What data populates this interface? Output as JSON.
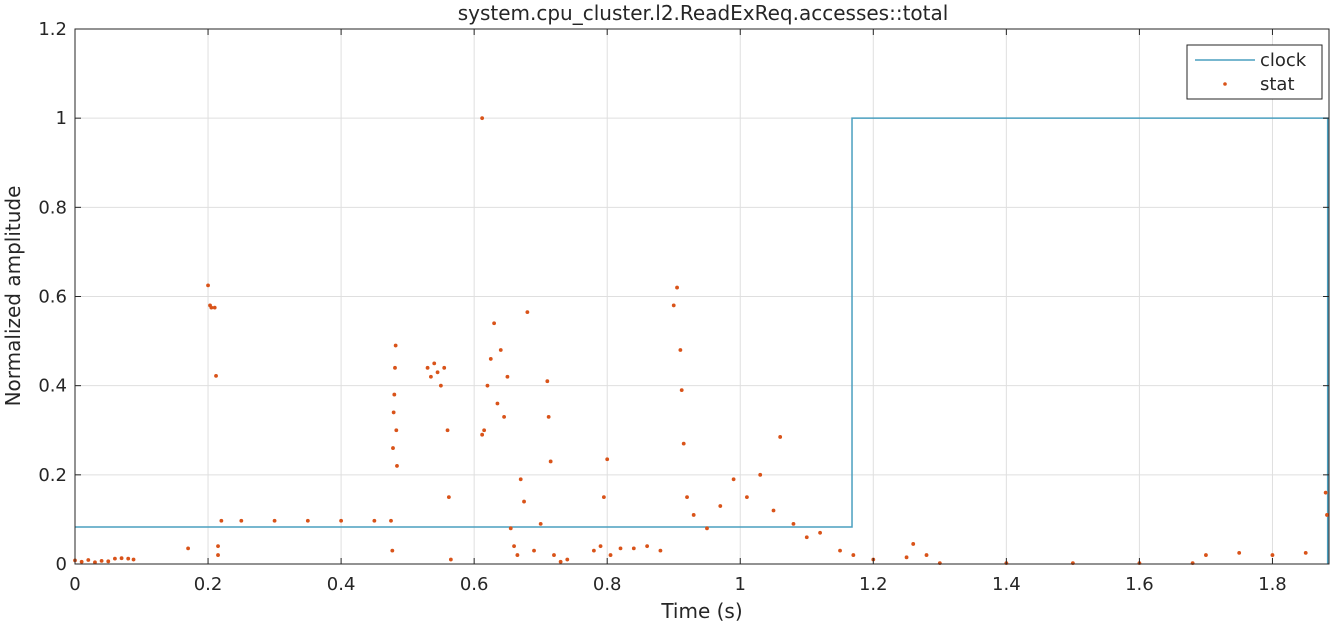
{
  "chart_data": {
    "type": "line",
    "title": "system.cpu_cluster.l2.ReadExReq.accesses::total",
    "xlabel": "Time (s)",
    "ylabel": "Normalized amplitude",
    "xlim": [
      0,
      1.885
    ],
    "ylim": [
      0,
      1.2
    ],
    "x_ticks": [
      0,
      0.2,
      0.4,
      0.6,
      0.8,
      1,
      1.2,
      1.4,
      1.6,
      1.8
    ],
    "x_tick_labels": [
      "0",
      "0.2",
      "0.4",
      "0.6",
      "0.8",
      "1",
      "1.2",
      "1.4",
      "1.6",
      "1.8"
    ],
    "y_ticks": [
      0,
      0.2,
      0.4,
      0.6,
      0.8,
      1,
      1.2
    ],
    "y_tick_labels": [
      "0",
      "0.2",
      "0.4",
      "0.6",
      "0.8",
      "1",
      "1.2"
    ],
    "grid": true,
    "legend_position": "top-right",
    "series": [
      {
        "name": "clock",
        "style": "step-line",
        "color": "#4a9fbf",
        "points": [
          [
            0,
            0.083
          ],
          [
            1.168,
            0.083
          ],
          [
            1.168,
            1.0
          ],
          [
            1.883,
            1.0
          ],
          [
            1.883,
            0.0
          ]
        ]
      },
      {
        "name": "stat",
        "style": "markers",
        "color": "#d95319",
        "points": [
          [
            0.0,
            0.008
          ],
          [
            0.01,
            0.005
          ],
          [
            0.02,
            0.009
          ],
          [
            0.03,
            0.004
          ],
          [
            0.04,
            0.007
          ],
          [
            0.05,
            0.006
          ],
          [
            0.06,
            0.012
          ],
          [
            0.07,
            0.013
          ],
          [
            0.08,
            0.012
          ],
          [
            0.088,
            0.01
          ],
          [
            0.17,
            0.035
          ],
          [
            0.2,
            0.625
          ],
          [
            0.203,
            0.58
          ],
          [
            0.205,
            0.575
          ],
          [
            0.21,
            0.575
          ],
          [
            0.212,
            0.422
          ],
          [
            0.215,
            0.04
          ],
          [
            0.215,
            0.02
          ],
          [
            0.22,
            0.097
          ],
          [
            0.25,
            0.097
          ],
          [
            0.3,
            0.097
          ],
          [
            0.35,
            0.097
          ],
          [
            0.4,
            0.097
          ],
          [
            0.45,
            0.097
          ],
          [
            0.475,
            0.097
          ],
          [
            0.477,
            0.03
          ],
          [
            0.478,
            0.26
          ],
          [
            0.479,
            0.34
          ],
          [
            0.48,
            0.38
          ],
          [
            0.481,
            0.44
          ],
          [
            0.482,
            0.49
          ],
          [
            0.483,
            0.3
          ],
          [
            0.484,
            0.22
          ],
          [
            0.53,
            0.44
          ],
          [
            0.535,
            0.42
          ],
          [
            0.54,
            0.45
          ],
          [
            0.545,
            0.43
          ],
          [
            0.55,
            0.4
          ],
          [
            0.555,
            0.44
          ],
          [
            0.56,
            0.3
          ],
          [
            0.562,
            0.15
          ],
          [
            0.565,
            0.01
          ],
          [
            0.612,
            1.0
          ],
          [
            0.612,
            0.29
          ],
          [
            0.615,
            0.3
          ],
          [
            0.62,
            0.4
          ],
          [
            0.625,
            0.46
          ],
          [
            0.63,
            0.54
          ],
          [
            0.635,
            0.36
          ],
          [
            0.64,
            0.48
          ],
          [
            0.645,
            0.33
          ],
          [
            0.65,
            0.42
          ],
          [
            0.655,
            0.08
          ],
          [
            0.66,
            0.04
          ],
          [
            0.665,
            0.02
          ],
          [
            0.67,
            0.19
          ],
          [
            0.675,
            0.14
          ],
          [
            0.68,
            0.565
          ],
          [
            0.69,
            0.03
          ],
          [
            0.7,
            0.09
          ],
          [
            0.71,
            0.41
          ],
          [
            0.712,
            0.33
          ],
          [
            0.715,
            0.23
          ],
          [
            0.72,
            0.02
          ],
          [
            0.73,
            0.005
          ],
          [
            0.74,
            0.01
          ],
          [
            0.78,
            0.03
          ],
          [
            0.79,
            0.04
          ],
          [
            0.795,
            0.15
          ],
          [
            0.8,
            0.235
          ],
          [
            0.805,
            0.02
          ],
          [
            0.82,
            0.035
          ],
          [
            0.84,
            0.035
          ],
          [
            0.86,
            0.04
          ],
          [
            0.88,
            0.03
          ],
          [
            0.9,
            0.58
          ],
          [
            0.905,
            0.62
          ],
          [
            0.91,
            0.48
          ],
          [
            0.912,
            0.39
          ],
          [
            0.915,
            0.27
          ],
          [
            0.92,
            0.15
          ],
          [
            0.93,
            0.11
          ],
          [
            0.95,
            0.08
          ],
          [
            0.97,
            0.13
          ],
          [
            0.99,
            0.19
          ],
          [
            1.01,
            0.15
          ],
          [
            1.03,
            0.2
          ],
          [
            1.05,
            0.12
          ],
          [
            1.06,
            0.285
          ],
          [
            1.08,
            0.09
          ],
          [
            1.1,
            0.06
          ],
          [
            1.12,
            0.07
          ],
          [
            1.15,
            0.03
          ],
          [
            1.17,
            0.02
          ],
          [
            1.2,
            0.01
          ],
          [
            1.25,
            0.015
          ],
          [
            1.26,
            0.045
          ],
          [
            1.28,
            0.02
          ],
          [
            1.3,
            0.002
          ],
          [
            1.4,
            0.002
          ],
          [
            1.5,
            0.002
          ],
          [
            1.6,
            0.002
          ],
          [
            1.68,
            0.002
          ],
          [
            1.7,
            0.02
          ],
          [
            1.75,
            0.025
          ],
          [
            1.8,
            0.02
          ],
          [
            1.85,
            0.025
          ],
          [
            1.88,
            0.16
          ],
          [
            1.882,
            0.11
          ]
        ]
      }
    ]
  }
}
